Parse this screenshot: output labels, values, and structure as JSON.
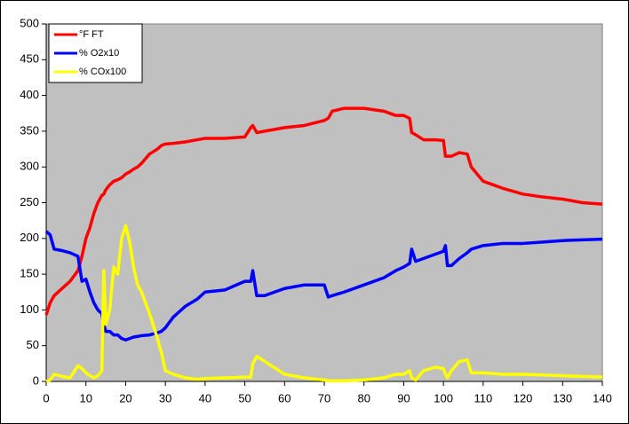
{
  "chart_data": {
    "type": "line",
    "x": [
      0,
      1,
      2,
      4,
      6,
      8,
      9,
      10,
      11,
      12,
      13,
      14,
      14.5,
      15,
      16,
      17,
      18,
      19,
      20,
      21,
      22,
      23,
      24,
      26,
      28,
      29,
      30,
      32,
      35,
      38,
      40,
      45,
      50,
      51.5,
      52,
      53,
      55,
      60,
      65,
      70,
      71,
      72,
      75,
      80,
      85,
      88,
      90,
      91.5,
      92,
      93,
      95,
      98,
      100,
      100.5,
      101,
      102,
      104,
      106,
      107,
      110,
      115,
      120,
      125,
      130,
      135,
      140
    ],
    "series": [
      {
        "name": "°F FT",
        "color": "#ff0000",
        "values": [
          93,
          110,
          120,
          130,
          140,
          155,
          175,
          200,
          215,
          235,
          250,
          260,
          262,
          268,
          275,
          280,
          282,
          285,
          290,
          293,
          297,
          300,
          305,
          318,
          325,
          330,
          332,
          333,
          335,
          338,
          340,
          340,
          342,
          355,
          358,
          348,
          350,
          355,
          358,
          365,
          368,
          378,
          382,
          382,
          378,
          372,
          372,
          368,
          348,
          345,
          338,
          338,
          337,
          315,
          315,
          315,
          320,
          318,
          300,
          280,
          270,
          262,
          258,
          255,
          250,
          248
        ]
      },
      {
        "name": "% O2x10",
        "color": "#0000ff",
        "values": [
          210,
          205,
          185,
          183,
          180,
          175,
          140,
          143,
          125,
          110,
          100,
          95,
          80,
          70,
          70,
          65,
          65,
          60,
          58,
          60,
          62,
          63,
          64,
          65,
          68,
          70,
          75,
          90,
          105,
          115,
          125,
          128,
          140,
          140,
          155,
          120,
          120,
          130,
          135,
          135,
          118,
          120,
          125,
          135,
          145,
          155,
          160,
          165,
          185,
          168,
          172,
          178,
          182,
          190,
          162,
          162,
          172,
          180,
          185,
          190,
          193,
          193,
          195,
          197,
          198,
          199
        ]
      },
      {
        "name": "% COx100",
        "color": "#ffff00",
        "values": [
          0,
          2,
          10,
          7,
          5,
          22,
          18,
          12,
          8,
          5,
          8,
          15,
          155,
          80,
          100,
          160,
          150,
          200,
          218,
          195,
          160,
          135,
          125,
          95,
          60,
          40,
          15,
          10,
          5,
          3,
          4,
          5,
          6,
          6,
          25,
          35,
          28,
          10,
          5,
          2,
          1,
          1,
          1,
          2,
          5,
          10,
          10,
          15,
          5,
          2,
          15,
          20,
          18,
          10,
          5,
          15,
          28,
          30,
          12,
          12,
          10,
          10,
          9,
          8,
          7,
          6
        ]
      }
    ],
    "xlim": [
      0,
      140
    ],
    "xticks": [
      0,
      10,
      20,
      30,
      40,
      50,
      60,
      70,
      80,
      90,
      100,
      110,
      120,
      130,
      140
    ],
    "ylim": [
      0,
      500
    ],
    "yticks": [
      0,
      50,
      100,
      150,
      200,
      250,
      300,
      350,
      400,
      450,
      500
    ],
    "grid": false,
    "legend": "top-left",
    "plot_background": "#c0c0c0"
  }
}
